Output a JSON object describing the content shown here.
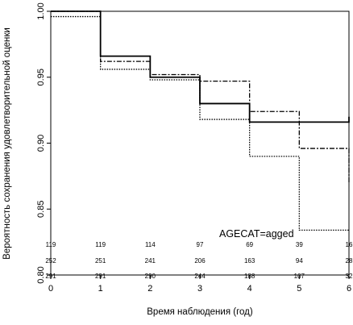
{
  "chart_data": {
    "type": "line",
    "step": true,
    "xlabel": "Время наблюдения (год)",
    "ylabel": "Вероятность сохранения удовлетворительной оценки",
    "xlim": [
      0,
      6
    ],
    "ylim": [
      0.8,
      1.0
    ],
    "xticks": [
      "0",
      "1",
      "2",
      "3",
      "4",
      "5",
      "6"
    ],
    "yticks": [
      "0.80",
      "0.85",
      "0.90",
      "0.95",
      "1.00"
    ],
    "grid": false,
    "legend": "none",
    "annotation": "AGECAT=agged",
    "series": [
      {
        "style": "solid",
        "x": [
          0,
          1,
          2,
          3,
          4,
          5,
          6
        ],
        "y": [
          1.0,
          0.966,
          0.95,
          0.93,
          0.916,
          0.916,
          0.92
        ]
      },
      {
        "style": "dashdot",
        "x": [
          0,
          1,
          2,
          3,
          4,
          5,
          6
        ],
        "y": [
          1.0,
          0.962,
          0.952,
          0.947,
          0.924,
          0.896,
          0.87
        ]
      },
      {
        "style": "dotted",
        "x": [
          0,
          1,
          2,
          3,
          4,
          5,
          6
        ],
        "y": [
          0.996,
          0.956,
          0.948,
          0.918,
          0.89,
          0.834,
          0.834
        ]
      }
    ],
    "at_risk": [
      [
        "119",
        "119",
        "114",
        "97",
        "69",
        "39",
        "16"
      ],
      [
        "252",
        "251",
        "241",
        "206",
        "163",
        "94",
        "28"
      ],
      [
        "291",
        "291",
        "290",
        "244",
        "188",
        "107",
        "32"
      ]
    ]
  }
}
